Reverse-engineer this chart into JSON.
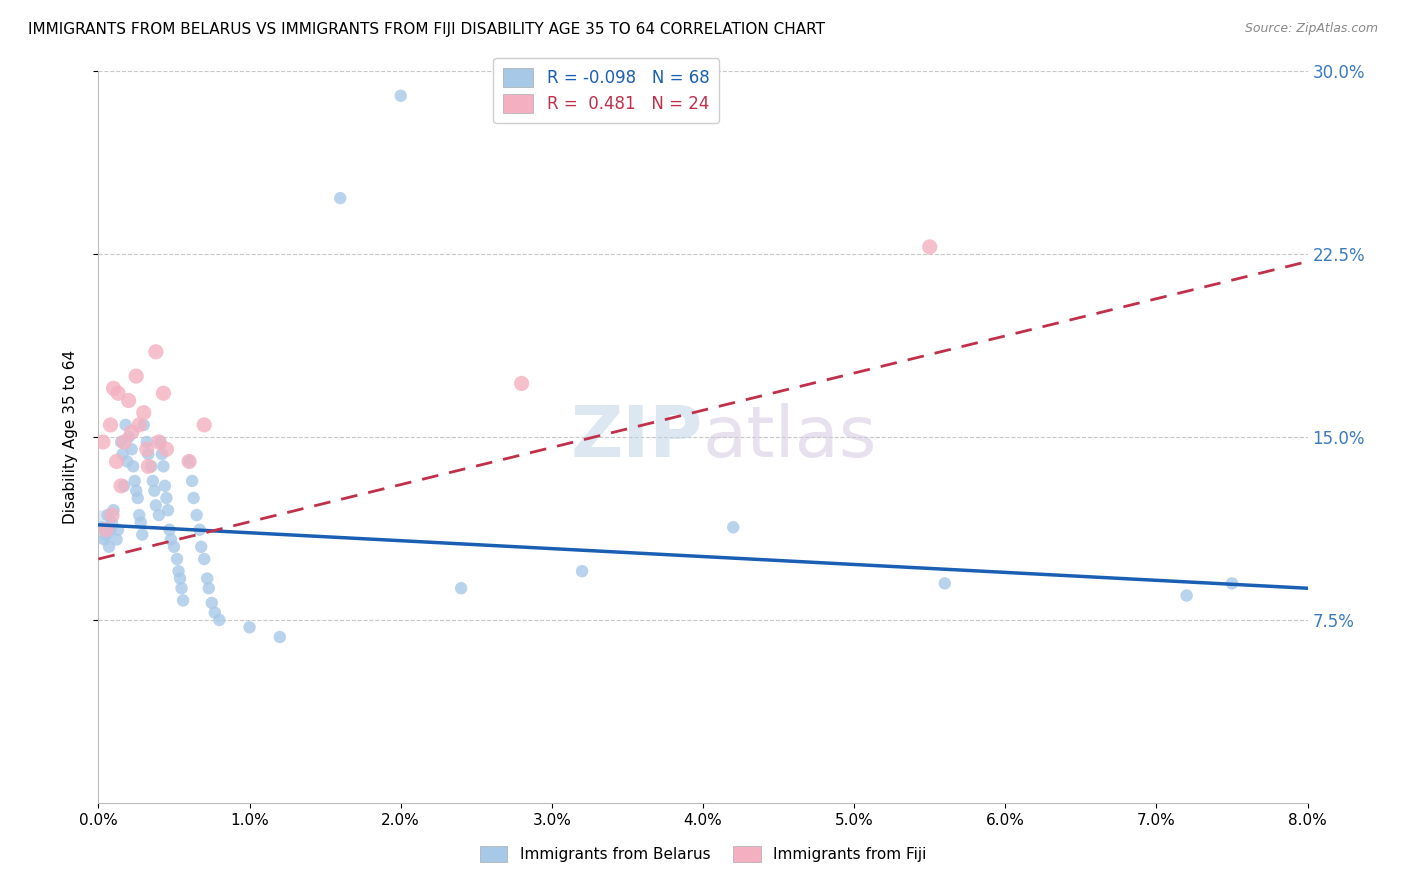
{
  "title": "IMMIGRANTS FROM BELARUS VS IMMIGRANTS FROM FIJI DISABILITY AGE 35 TO 64 CORRELATION CHART",
  "source": "Source: ZipAtlas.com",
  "ylabel": "Disability Age 35 to 64",
  "ytick_labels": [
    "7.5%",
    "15.0%",
    "22.5%",
    "30.0%"
  ],
  "legend_belarus": "Immigrants from Belarus",
  "legend_fiji": "Immigrants from Fiji",
  "r_belarus": "-0.098",
  "n_belarus": "68",
  "r_fiji": "0.481",
  "n_fiji": "24",
  "color_belarus": "#a8c8e8",
  "color_fiji": "#f4b0c0",
  "line_color_belarus": "#1a5fb4",
  "line_color_fiji": "#c0304a",
  "background_color": "#ffffff",
  "xlim": [
    0.0,
    0.08
  ],
  "ylim": [
    0.0,
    0.3
  ],
  "belarus_points": [
    [
      0.0002,
      0.113
    ],
    [
      0.0004,
      0.108
    ],
    [
      0.0005,
      0.11
    ],
    [
      0.0006,
      0.118
    ],
    [
      0.0007,
      0.105
    ],
    [
      0.0008,
      0.112
    ],
    [
      0.0009,
      0.115
    ],
    [
      0.001,
      0.12
    ],
    [
      0.0012,
      0.108
    ],
    [
      0.0013,
      0.112
    ],
    [
      0.0015,
      0.148
    ],
    [
      0.0016,
      0.143
    ],
    [
      0.0017,
      0.13
    ],
    [
      0.0018,
      0.155
    ],
    [
      0.0019,
      0.14
    ],
    [
      0.002,
      0.15
    ],
    [
      0.0022,
      0.145
    ],
    [
      0.0023,
      0.138
    ],
    [
      0.0024,
      0.132
    ],
    [
      0.0025,
      0.128
    ],
    [
      0.0026,
      0.125
    ],
    [
      0.0027,
      0.118
    ],
    [
      0.0028,
      0.115
    ],
    [
      0.0029,
      0.11
    ],
    [
      0.003,
      0.155
    ],
    [
      0.0032,
      0.148
    ],
    [
      0.0033,
      0.143
    ],
    [
      0.0035,
      0.138
    ],
    [
      0.0036,
      0.132
    ],
    [
      0.0037,
      0.128
    ],
    [
      0.0038,
      0.122
    ],
    [
      0.004,
      0.118
    ],
    [
      0.0041,
      0.148
    ],
    [
      0.0042,
      0.143
    ],
    [
      0.0043,
      0.138
    ],
    [
      0.0044,
      0.13
    ],
    [
      0.0045,
      0.125
    ],
    [
      0.0046,
      0.12
    ],
    [
      0.0047,
      0.112
    ],
    [
      0.0048,
      0.108
    ],
    [
      0.005,
      0.105
    ],
    [
      0.0052,
      0.1
    ],
    [
      0.0053,
      0.095
    ],
    [
      0.0054,
      0.092
    ],
    [
      0.0055,
      0.088
    ],
    [
      0.0056,
      0.083
    ],
    [
      0.006,
      0.14
    ],
    [
      0.0062,
      0.132
    ],
    [
      0.0063,
      0.125
    ],
    [
      0.0065,
      0.118
    ],
    [
      0.0067,
      0.112
    ],
    [
      0.0068,
      0.105
    ],
    [
      0.007,
      0.1
    ],
    [
      0.0072,
      0.092
    ],
    [
      0.0073,
      0.088
    ],
    [
      0.0075,
      0.082
    ],
    [
      0.0077,
      0.078
    ],
    [
      0.008,
      0.075
    ],
    [
      0.01,
      0.072
    ],
    [
      0.012,
      0.068
    ],
    [
      0.016,
      0.248
    ],
    [
      0.02,
      0.29
    ],
    [
      0.024,
      0.088
    ],
    [
      0.032,
      0.095
    ],
    [
      0.042,
      0.113
    ],
    [
      0.056,
      0.09
    ],
    [
      0.072,
      0.085
    ],
    [
      0.075,
      0.09
    ]
  ],
  "fiji_points": [
    [
      0.0003,
      0.148
    ],
    [
      0.0005,
      0.112
    ],
    [
      0.0008,
      0.155
    ],
    [
      0.0009,
      0.118
    ],
    [
      0.001,
      0.17
    ],
    [
      0.0012,
      0.14
    ],
    [
      0.0013,
      0.168
    ],
    [
      0.0015,
      0.13
    ],
    [
      0.0017,
      0.148
    ],
    [
      0.002,
      0.165
    ],
    [
      0.0022,
      0.152
    ],
    [
      0.0025,
      0.175
    ],
    [
      0.0027,
      0.155
    ],
    [
      0.003,
      0.16
    ],
    [
      0.0032,
      0.145
    ],
    [
      0.0033,
      0.138
    ],
    [
      0.0038,
      0.185
    ],
    [
      0.004,
      0.148
    ],
    [
      0.0043,
      0.168
    ],
    [
      0.0045,
      0.145
    ],
    [
      0.006,
      0.14
    ],
    [
      0.007,
      0.155
    ],
    [
      0.028,
      0.172
    ],
    [
      0.055,
      0.228
    ]
  ],
  "belarus_line_x": [
    0.0,
    0.08
  ],
  "belarus_line_y": [
    0.114,
    0.088
  ],
  "fiji_line_x": [
    0.0,
    0.08
  ],
  "fiji_line_y": [
    0.1,
    0.222
  ]
}
